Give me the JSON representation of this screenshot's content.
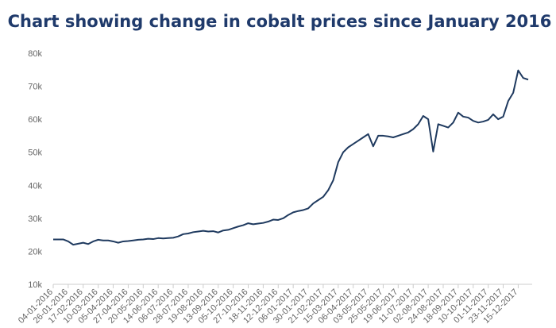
{
  "chart_data": {
    "type": "line",
    "title": "Chart showing change in cobalt prices since January 2016",
    "color": "#1f3a5f",
    "categories": [
      "04-01-2016",
      null,
      null,
      "26-01-2016",
      null,
      null,
      "17-02-2016",
      null,
      null,
      "10-03-2016",
      null,
      null,
      "05-04-2016",
      null,
      null,
      "27-04-2016",
      null,
      null,
      "20-05-2016",
      null,
      null,
      "14-06-2016",
      null,
      null,
      "06-07-2016",
      null,
      null,
      "28-07-2016",
      null,
      null,
      "19-08-2016",
      null,
      null,
      "13-09-2016",
      null,
      null,
      "05-10-2016",
      null,
      null,
      "27-10-2016",
      null,
      null,
      "18-11-2016",
      null,
      null,
      "12-12-2016",
      null,
      null,
      "06-01-2017",
      null,
      null,
      "30-01-2017",
      null,
      null,
      "21-02-2017",
      null,
      null,
      "15-03-2017",
      null,
      null,
      "06-04-2017",
      null,
      null,
      "03-05-2017",
      null,
      null,
      "25-05-2017",
      null,
      null,
      "19-06-2017",
      null,
      null,
      "11-07-2017",
      null,
      null,
      "02-08-2017",
      null,
      null,
      "24-08-2017",
      null,
      null,
      "18-09-2017",
      null,
      null,
      "10-10-2017",
      null,
      null,
      "01-11-2017",
      null,
      null,
      "23-11-2017",
      null,
      null,
      "15-12-2017",
      null,
      null
    ],
    "values": [
      23600,
      23600,
      23600,
      23000,
      22000,
      22300,
      22600,
      22200,
      23000,
      23500,
      23300,
      23300,
      23000,
      22600,
      23000,
      23100,
      23300,
      23500,
      23600,
      23800,
      23700,
      24000,
      23900,
      24000,
      24100,
      24500,
      25200,
      25400,
      25800,
      26000,
      26200,
      26000,
      26100,
      25700,
      26300,
      26500,
      27000,
      27500,
      27900,
      28500,
      28200,
      28400,
      28600,
      29000,
      29600,
      29500,
      30000,
      31000,
      31800,
      32200,
      32500,
      33000,
      34500,
      35500,
      36500,
      38500,
      41500,
      47000,
      50000,
      51500,
      52500,
      53500,
      54500,
      55500,
      51800,
      55000,
      55000,
      54800,
      54500,
      55000,
      55500,
      56000,
      57000,
      58500,
      61000,
      60000,
      50200,
      58500,
      58000,
      57500,
      59000,
      62000,
      60800,
      60500,
      59500,
      59000,
      59300,
      59800,
      61500,
      60000,
      60800,
      65500,
      68000,
      74800,
      72500,
      72000
    ],
    "ylim": [
      10000,
      80000
    ],
    "yticks": [
      {
        "value": 10000,
        "label": "10k"
      },
      {
        "value": 20000,
        "label": "20k"
      },
      {
        "value": 30000,
        "label": "30k"
      },
      {
        "value": 40000,
        "label": "40k"
      },
      {
        "value": 50000,
        "label": "50k"
      },
      {
        "value": 60000,
        "label": "60k"
      },
      {
        "value": 70000,
        "label": "70k"
      },
      {
        "value": 80000,
        "label": "80k"
      }
    ],
    "grid": false
  }
}
